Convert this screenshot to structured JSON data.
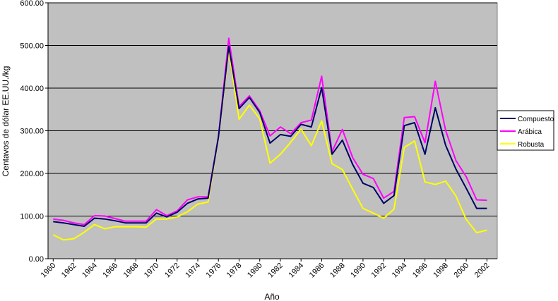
{
  "chart_data": {
    "type": "line",
    "xlabel": "Año",
    "ylabel": "Centavos de dólar EE.UU./kg",
    "ylim": [
      0,
      600
    ],
    "yticks": [
      "0.00",
      "100.00",
      "200.00",
      "300.00",
      "400.00",
      "500.00",
      "600.00"
    ],
    "xticks": [
      "1960",
      "1962",
      "1964",
      "1966",
      "1968",
      "1970",
      "1972",
      "1974",
      "1976",
      "1978",
      "1980",
      "1982",
      "1984",
      "1986",
      "1988",
      "1990",
      "1992",
      "1994",
      "1996",
      "1998",
      "2000",
      "2002"
    ],
    "grid": true,
    "legend_position": "right",
    "x": [
      1960,
      1961,
      1962,
      1963,
      1964,
      1965,
      1966,
      1967,
      1968,
      1969,
      1970,
      1971,
      1972,
      1973,
      1974,
      1975,
      1976,
      1977,
      1978,
      1979,
      1980,
      1981,
      1982,
      1983,
      1984,
      1985,
      1986,
      1987,
      1988,
      1989,
      1990,
      1991,
      1992,
      1993,
      1994,
      1995,
      1996,
      1997,
      1998,
      1999,
      2000,
      2001,
      2002
    ],
    "series": [
      {
        "name": "Compuesto",
        "color": "#000066",
        "values": [
          87,
          84,
          80,
          76,
          95,
          93,
          89,
          84,
          84,
          84,
          107,
          98,
          109,
          130,
          140,
          142,
          285,
          498,
          352,
          378,
          343,
          271,
          291,
          287,
          315,
          309,
          401,
          245,
          278,
          221,
          177,
          167,
          130,
          148,
          312,
          319,
          245,
          354,
          266,
          210,
          165,
          118,
          118
        ]
      },
      {
        "name": "Arábica",
        "color": "#ff00ff",
        "values": [
          93,
          90,
          84,
          80,
          101,
          100,
          94,
          88,
          88,
          88,
          115,
          101,
          112,
          138,
          145,
          145,
          285,
          517,
          357,
          382,
          347,
          288,
          309,
          293,
          319,
          325,
          428,
          251,
          303,
          237,
          198,
          188,
          142,
          158,
          331,
          333,
          272,
          416,
          301,
          230,
          192,
          138,
          137
        ]
      },
      {
        "name": "Robusta",
        "color": "#ffff00",
        "values": [
          56,
          44,
          47,
          62,
          80,
          70,
          75,
          75,
          75,
          74,
          93,
          93,
          98,
          110,
          128,
          133,
          285,
          490,
          327,
          360,
          328,
          224,
          245,
          273,
          304,
          265,
          323,
          223,
          209,
          163,
          118,
          107,
          95,
          116,
          261,
          276,
          180,
          174,
          182,
          147,
          92,
          61,
          67
        ]
      }
    ]
  }
}
